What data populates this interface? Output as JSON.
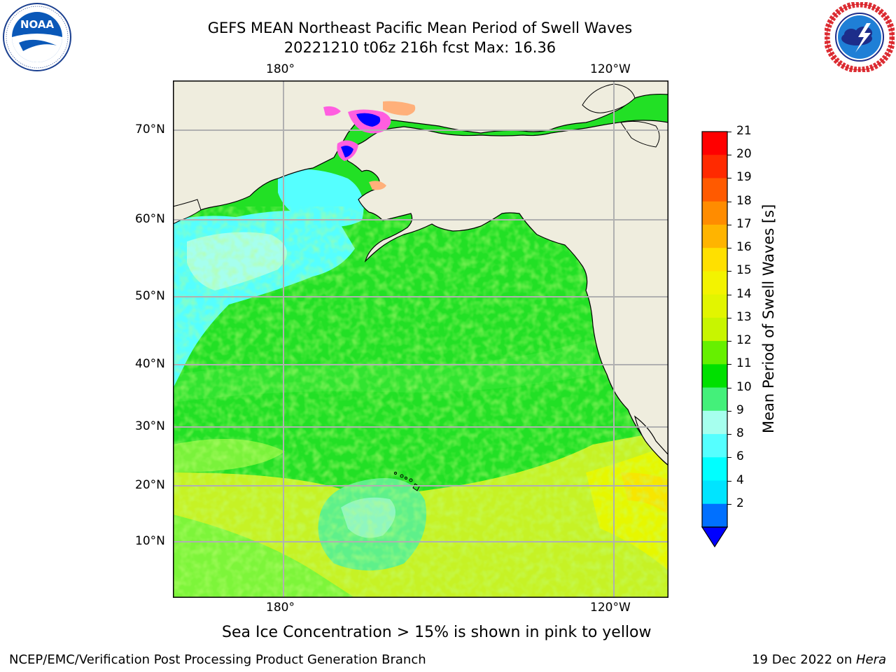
{
  "title": {
    "line1": "GEFS MEAN Northeast Pacific Mean Period of Swell Waves",
    "line2": "20221210 t06z 216h fcst   Max: 16.36"
  },
  "logos": {
    "noaa": {
      "text": "NOAA",
      "ring_text": "NATIONAL OCEANIC AND ATMOSPHERIC ADMINISTRATION · U.S. DEPARTMENT OF COMMERCE"
    },
    "nws": {
      "ring_text": "NATIONAL WEATHER SERVICE"
    }
  },
  "map": {
    "x_ticks_top": [
      "180°",
      "120°W"
    ],
    "x_ticks_bottom": [
      "180°",
      "120°W"
    ],
    "y_ticks": [
      "70°N",
      "60°N",
      "50°N",
      "40°N",
      "30°N",
      "20°N",
      "10°N"
    ],
    "colors": {
      "land": "#efedde",
      "grid": "#b0b0b0",
      "coast": "#000000"
    }
  },
  "colorbar": {
    "label": "Mean Period of Swell Waves [s]",
    "ticks": [
      "21",
      "20",
      "19",
      "18",
      "17",
      "16",
      "15",
      "14",
      "13",
      "12",
      "11",
      "10",
      "9",
      "8",
      "6",
      "4",
      "2"
    ],
    "colors": [
      "#ff0000",
      "#ff2a00",
      "#ff5a00",
      "#ff8c00",
      "#ffb400",
      "#ffe000",
      "#f3f300",
      "#e2f500",
      "#c8f500",
      "#66f000",
      "#00e000",
      "#44f07a",
      "#a6ffee",
      "#55ffff",
      "#00ffff",
      "#00e4ff",
      "#0070ff"
    ],
    "extend_color": "#0000ff"
  },
  "note": "Sea Ice Concentration > 15% is shown in pink to yellow",
  "footer": {
    "left": "NCEP/EMC/Verification Post Processing Product Generation Branch",
    "right_prefix": "19 Dec 2022 on ",
    "right_italic": "Hera"
  }
}
